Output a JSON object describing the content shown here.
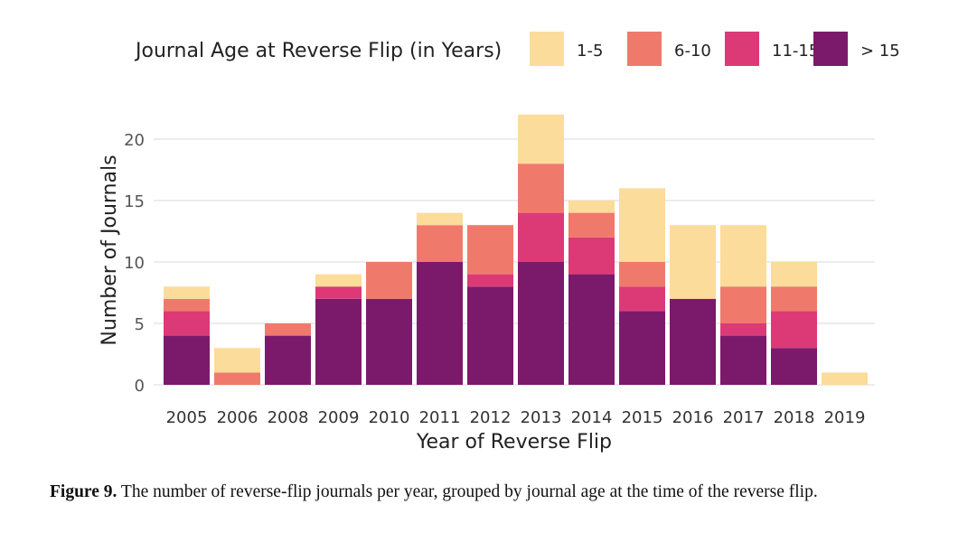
{
  "chart_data": {
    "type": "bar",
    "stacked": true,
    "xlabel": "Year of Reverse Flip",
    "ylabel": "Number of Journals",
    "legend_title": "Journal Age at Reverse Flip (in Years)",
    "legend_position": "top",
    "ylim": [
      0,
      22
    ],
    "yticks": [
      0,
      5,
      10,
      15,
      20
    ],
    "grid": true,
    "categories": [
      "2005",
      "2006",
      "2008",
      "2009",
      "2010",
      "2011",
      "2012",
      "2013",
      "2014",
      "2015",
      "2016",
      "2017",
      "2018",
      "2019"
    ],
    "series": [
      {
        "name": "> 15",
        "color": "#7b1a6b",
        "values": [
          4,
          0,
          4,
          7,
          7,
          10,
          8,
          10,
          9,
          6,
          7,
          4,
          3,
          0
        ]
      },
      {
        "name": "11-15",
        "color": "#dc3a76",
        "values": [
          2,
          0,
          0,
          1,
          0,
          0,
          1,
          4,
          3,
          2,
          0,
          1,
          3,
          0
        ]
      },
      {
        "name": "6-10",
        "color": "#ef7a6c",
        "values": [
          1,
          1,
          1,
          0,
          3,
          3,
          4,
          4,
          2,
          2,
          0,
          3,
          2,
          0
        ]
      },
      {
        "name": "1-5",
        "color": "#fbdc9a",
        "values": [
          1,
          2,
          0,
          1,
          0,
          1,
          0,
          4,
          1,
          6,
          6,
          5,
          2,
          1
        ]
      }
    ],
    "legend_order": [
      "1-5",
      "6-10",
      "11-15",
      "> 15"
    ]
  },
  "caption": {
    "label": "Figure 9.",
    "text": " The number of reverse-flip journals per year, grouped by journal age at the time of the reverse flip."
  }
}
